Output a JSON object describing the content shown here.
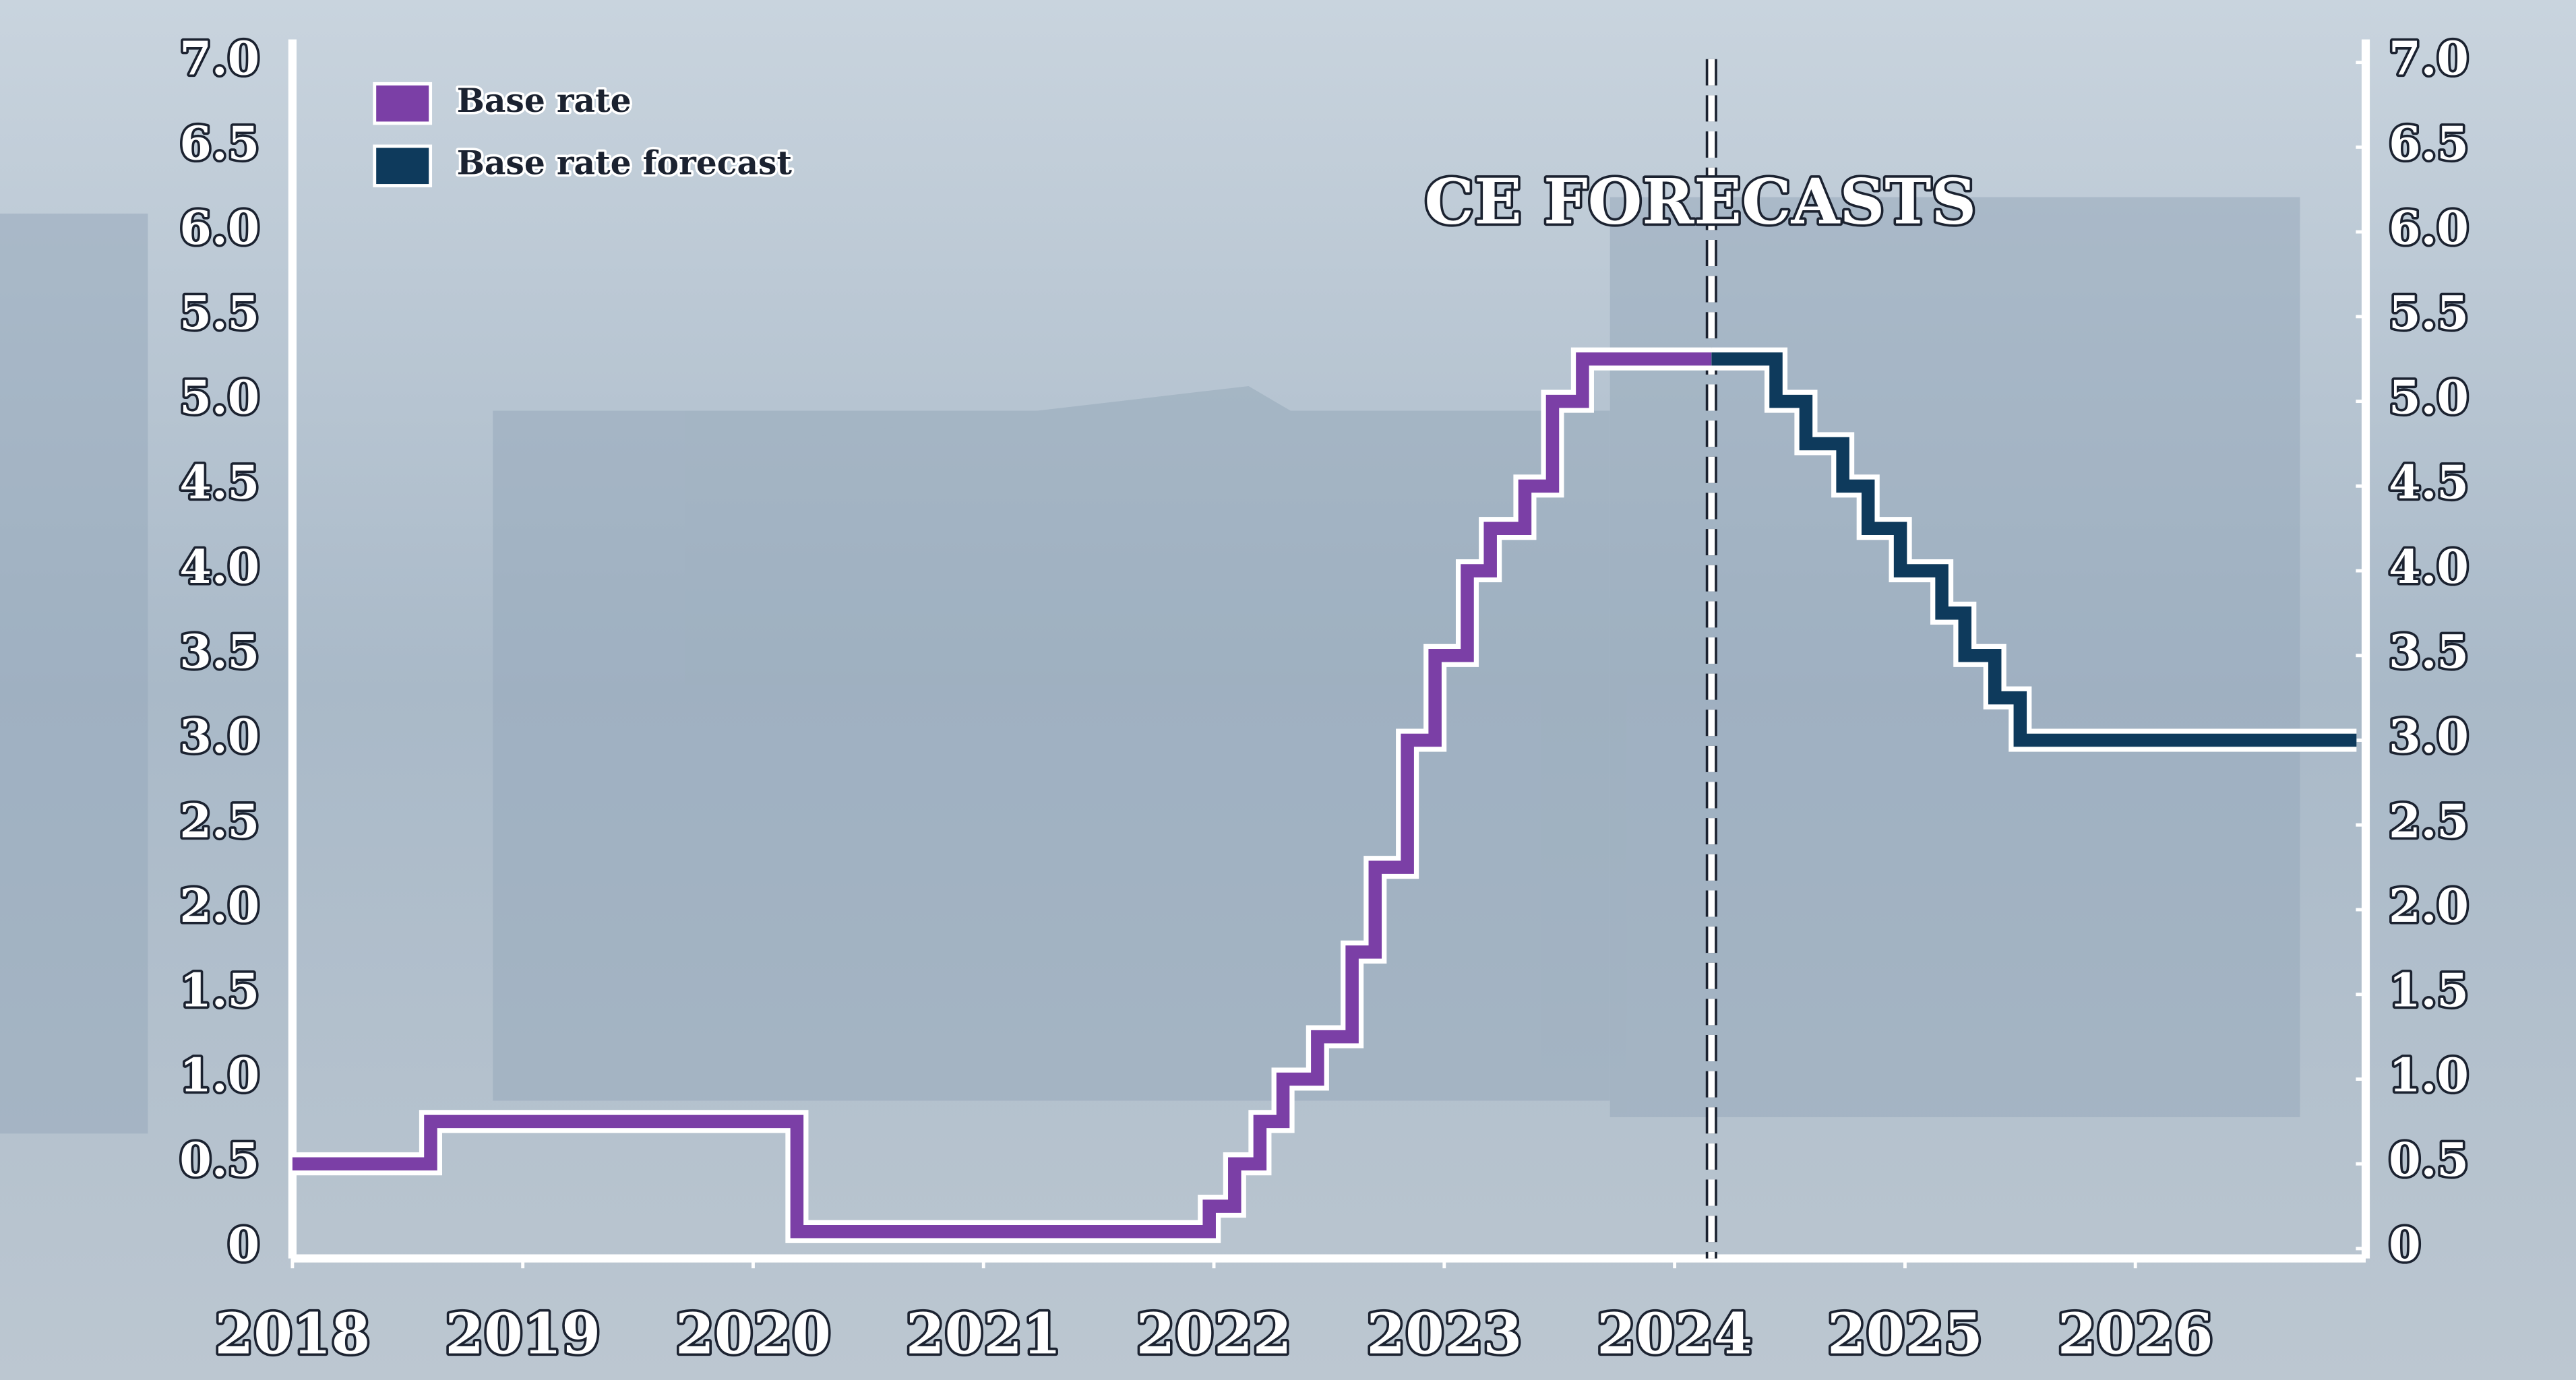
{
  "chart_data": {
    "type": "line",
    "step": true,
    "annotation": "CE FORECASTS",
    "xlim": [
      2018,
      2027
    ],
    "xticks": [
      2018,
      2019,
      2020,
      2021,
      2022,
      2023,
      2024,
      2025,
      2026
    ],
    "ylim": [
      0,
      7
    ],
    "yticks": [
      0,
      0.5,
      {
        "value": 1,
        "label": "1.0"
      },
      1.5,
      {
        "value": 2,
        "label": "2.0"
      },
      2.5,
      {
        "value": 3,
        "label": "3.0"
      },
      3.5,
      {
        "value": 4,
        "label": "4.0"
      },
      4.5,
      {
        "value": 5,
        "label": "5.0"
      },
      5.5,
      {
        "value": 6,
        "label": "6.0"
      },
      6.5,
      {
        "value": 7,
        "label": "7.0"
      }
    ],
    "series": [
      {
        "name": "Base rate",
        "color": "#7b3fa6",
        "x": [
          2018,
          2018.6,
          2020.19,
          2021.98,
          2022.09,
          2022.2,
          2022.3,
          2022.45,
          2022.6,
          2022.7,
          2022.84,
          2022.96,
          2023.1,
          2023.2,
          2023.35,
          2023.47,
          2023.6,
          2024.16
        ],
        "values": [
          0.5,
          0.75,
          0.1,
          0.25,
          0.5,
          0.75,
          1,
          1.25,
          1.75,
          2.25,
          3,
          3.5,
          4,
          4.25,
          4.5,
          5,
          5.25,
          5.25
        ]
      },
      {
        "name": "Base rate forecast",
        "color": "#0e3a5c",
        "x": [
          2024.16,
          2024.44,
          2024.57,
          2024.73,
          2024.84,
          2024.98,
          2025.16,
          2025.26,
          2025.39,
          2025.5,
          2026.96
        ],
        "values": [
          5.25,
          5,
          4.75,
          4.5,
          4.25,
          4,
          3.75,
          3.5,
          3.25,
          3,
          3
        ]
      }
    ]
  }
}
